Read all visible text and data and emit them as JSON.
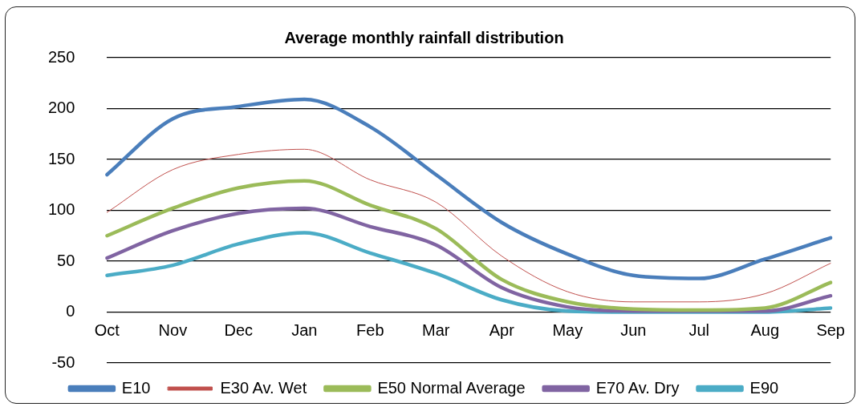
{
  "chart_data": {
    "type": "line",
    "title": "Average monthly rainfall distribution",
    "categories": [
      "Oct",
      "Nov",
      "Dec",
      "Jan",
      "Feb",
      "Mar",
      "Apr",
      "May",
      "Jun",
      "Jul",
      "Aug",
      "Sep"
    ],
    "series": [
      {
        "name": "E10",
        "color": "#4a7ebb",
        "values": [
          135,
          190,
          202,
          209,
          182,
          135,
          88,
          57,
          36,
          33,
          52,
          73
        ]
      },
      {
        "name": "E30 Av. Wet",
        "color": "#c0504d",
        "values": [
          98,
          140,
          155,
          160,
          130,
          108,
          55,
          20,
          10,
          10,
          18,
          48
        ]
      },
      {
        "name": "E50 Normal Average",
        "color": "#9bbb59",
        "values": [
          75,
          102,
          122,
          129,
          105,
          82,
          32,
          10,
          3,
          2,
          4,
          29
        ]
      },
      {
        "name": "E70 Av. Dry",
        "color": "#8064a2",
        "values": [
          53,
          80,
          97,
          102,
          84,
          66,
          24,
          5,
          1,
          1,
          1,
          16
        ]
      },
      {
        "name": "E90",
        "color": "#4bacc6",
        "values": [
          36,
          46,
          67,
          78,
          58,
          38,
          12,
          1,
          0,
          0,
          0,
          4
        ]
      }
    ],
    "ylim": [
      -50,
      250
    ],
    "yticks": [
      -50,
      0,
      50,
      100,
      150,
      200,
      250
    ],
    "grid": "y",
    "legend": "bottom",
    "marker": "none",
    "line_style": "solid"
  }
}
